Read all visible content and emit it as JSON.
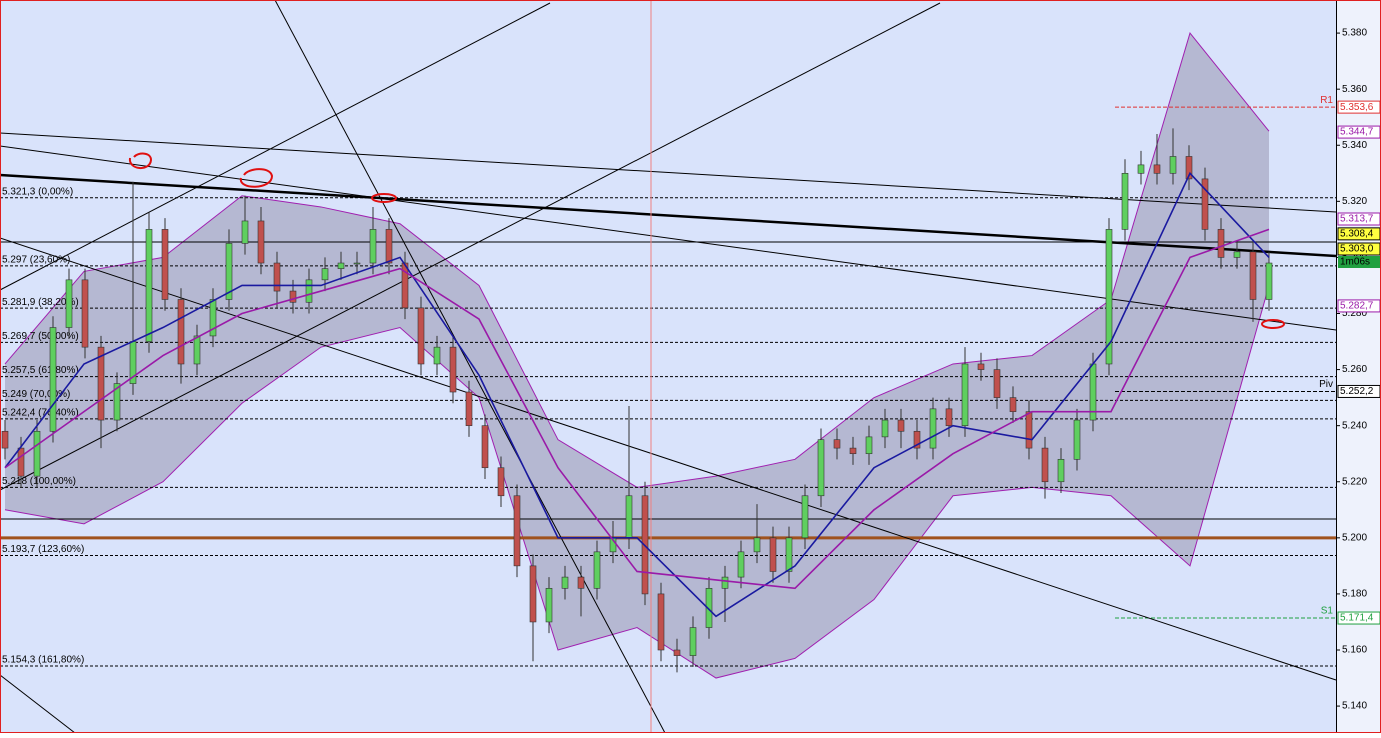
{
  "chart_data": {
    "type": "candlestick",
    "ylim": [
      5.1304,
      5.3918
    ],
    "yticks": [
      {
        "value": 5.14,
        "label": "5.140"
      },
      {
        "value": 5.16,
        "label": "5.160"
      },
      {
        "value": 5.18,
        "label": "5.180"
      },
      {
        "value": 5.2,
        "label": "5.200"
      },
      {
        "value": 5.22,
        "label": "5.220"
      },
      {
        "value": 5.24,
        "label": "5.240"
      },
      {
        "value": 5.26,
        "label": "5.260"
      },
      {
        "value": 5.28,
        "label": "5.280"
      },
      {
        "value": 5.3,
        "label": "5.300"
      },
      {
        "value": 5.32,
        "label": "5.320"
      },
      {
        "value": 5.34,
        "label": "5.340"
      },
      {
        "value": 5.36,
        "label": "5.360"
      },
      {
        "value": 5.38,
        "label": "5.380"
      }
    ],
    "up_color": "#5fcf5f",
    "down_color": "#c0504d",
    "open": [
      5.238,
      5.232,
      5.222,
      5.238,
      5.275,
      5.292,
      5.268,
      5.242,
      5.255,
      5.27,
      5.31,
      5.285,
      5.262,
      5.272,
      5.285,
      5.305,
      5.313,
      5.298,
      5.288,
      5.284,
      5.292,
      5.296,
      5.298,
      5.298,
      5.31,
      5.298,
      5.282,
      5.262,
      5.268,
      5.252,
      5.24,
      5.225,
      5.215,
      5.19,
      5.17,
      5.182,
      5.186,
      5.182,
      5.195,
      5.2,
      5.215,
      5.18,
      5.16,
      5.158,
      5.168,
      5.182,
      5.186,
      5.195,
      5.2,
      5.188,
      5.2,
      5.215,
      5.235,
      5.232,
      5.23,
      5.236,
      5.242,
      5.238,
      5.232,
      5.246,
      5.24,
      5.262,
      5.26,
      5.25,
      5.245,
      5.232,
      5.22,
      5.228,
      5.242,
      5.262,
      5.31,
      5.33,
      5.333,
      5.33,
      5.336,
      5.328,
      5.31,
      5.3,
      5.302,
      5.285
    ],
    "high": [
      5.242,
      5.236,
      5.242,
      5.279,
      5.296,
      5.296,
      5.272,
      5.259,
      5.327,
      5.316,
      5.314,
      5.289,
      5.276,
      5.289,
      5.31,
      5.322,
      5.318,
      5.302,
      5.292,
      5.296,
      5.3,
      5.302,
      5.302,
      5.318,
      5.314,
      5.302,
      5.286,
      5.272,
      5.272,
      5.256,
      5.244,
      5.229,
      5.219,
      5.194,
      5.186,
      5.19,
      5.19,
      5.199,
      5.206,
      5.247,
      5.22,
      5.184,
      5.164,
      5.172,
      5.186,
      5.19,
      5.199,
      5.212,
      5.204,
      5.204,
      5.219,
      5.239,
      5.239,
      5.236,
      5.24,
      5.246,
      5.246,
      5.242,
      5.25,
      5.25,
      5.268,
      5.266,
      5.264,
      5.254,
      5.249,
      5.236,
      5.232,
      5.246,
      5.266,
      5.314,
      5.335,
      5.338,
      5.344,
      5.346,
      5.34,
      5.332,
      5.314,
      5.306,
      5.306,
      5.302
    ],
    "low": [
      5.228,
      5.218,
      5.218,
      5.234,
      5.271,
      5.264,
      5.232,
      5.238,
      5.251,
      5.266,
      5.281,
      5.255,
      5.258,
      5.268,
      5.281,
      5.301,
      5.294,
      5.282,
      5.28,
      5.28,
      5.288,
      5.292,
      5.294,
      5.294,
      5.294,
      5.278,
      5.258,
      5.258,
      5.248,
      5.236,
      5.221,
      5.211,
      5.186,
      5.156,
      5.166,
      5.178,
      5.172,
      5.178,
      5.191,
      5.196,
      5.176,
      5.156,
      5.152,
      5.154,
      5.164,
      5.17,
      5.182,
      5.191,
      5.184,
      5.184,
      5.196,
      5.211,
      5.228,
      5.226,
      5.226,
      5.232,
      5.232,
      5.228,
      5.228,
      5.236,
      5.236,
      5.256,
      5.246,
      5.241,
      5.228,
      5.214,
      5.216,
      5.224,
      5.238,
      5.258,
      5.306,
      5.326,
      5.326,
      5.326,
      5.324,
      5.306,
      5.296,
      5.296,
      5.277,
      5.281
    ],
    "close": [
      5.232,
      5.222,
      5.238,
      5.275,
      5.292,
      5.268,
      5.242,
      5.255,
      5.27,
      5.31,
      5.285,
      5.262,
      5.272,
      5.285,
      5.305,
      5.313,
      5.298,
      5.288,
      5.284,
      5.292,
      5.296,
      5.298,
      5.298,
      5.31,
      5.298,
      5.282,
      5.262,
      5.268,
      5.252,
      5.24,
      5.225,
      5.215,
      5.19,
      5.17,
      5.182,
      5.186,
      5.182,
      5.195,
      5.2,
      5.215,
      5.18,
      5.16,
      5.158,
      5.168,
      5.182,
      5.186,
      5.195,
      5.2,
      5.188,
      5.2,
      5.215,
      5.235,
      5.232,
      5.23,
      5.236,
      5.242,
      5.238,
      5.232,
      5.246,
      5.24,
      5.262,
      5.26,
      5.25,
      5.245,
      5.232,
      5.22,
      5.228,
      5.242,
      5.262,
      5.31,
      5.33,
      5.333,
      5.33,
      5.336,
      5.328,
      5.31,
      5.3,
      5.302,
      5.285,
      5.298
    ],
    "band": {
      "color": "#a8aac4",
      "upper": [
        5.262,
        5.295,
        5.3,
        5.322,
        5.318,
        5.312,
        5.29,
        5.235,
        5.218,
        5.222,
        5.228,
        5.25,
        5.262,
        5.265,
        5.285,
        5.38,
        5.345
      ],
      "lower": [
        5.21,
        5.205,
        5.22,
        5.248,
        5.268,
        5.275,
        5.25,
        5.16,
        5.168,
        5.15,
        5.157,
        5.178,
        5.215,
        5.218,
        5.215,
        5.19,
        5.29
      ]
    },
    "series": [
      {
        "color": "#1a1aa0",
        "values": [
          5.225,
          5.262,
          5.275,
          5.29,
          5.29,
          5.3,
          5.258,
          5.2,
          5.2,
          5.172,
          5.19,
          5.225,
          5.24,
          5.235,
          5.27,
          5.33,
          5.3
        ]
      },
      {
        "color": "#9a1aa8",
        "values": [
          5.225,
          5.245,
          5.265,
          5.28,
          5.288,
          5.296,
          5.278,
          5.225,
          5.188,
          5.185,
          5.182,
          5.21,
          5.23,
          5.245,
          5.245,
          5.3,
          5.31
        ]
      }
    ],
    "fib_levels": [
      {
        "value": 5.3213,
        "label": "5.321,3 (0,00%)"
      },
      {
        "value": 5.297,
        "label": "5.297 (23,60%)"
      },
      {
        "value": 5.2819,
        "label": "5.281,9 (38,20%)"
      },
      {
        "value": 5.2697,
        "label": "5.269,7 (50,00%)"
      },
      {
        "value": 5.2575,
        "label": "5.257,5 (61,80%)"
      },
      {
        "value": 5.249,
        "label": "5.249 (70,00%)"
      },
      {
        "value": 5.2424,
        "label": "5.242,4 (76,40%)"
      },
      {
        "value": 5.218,
        "label": "5.218 (100,00%)"
      },
      {
        "value": 5.1937,
        "label": "5.193,7 (123,60%)"
      },
      {
        "value": 5.1543,
        "label": "5.154,3 (161,80%)"
      }
    ],
    "support_lines": [
      5.2067,
      5.3055
    ],
    "key_level": {
      "value": 5.2,
      "color": "#a0521d"
    },
    "pivots": [
      {
        "name": "R1",
        "value": 5.3536,
        "label": "5.353,6",
        "color": "#e03030"
      },
      {
        "name": "Piv",
        "value": 5.2522,
        "label": "5.252,2",
        "color": "#000000"
      },
      {
        "name": "S1",
        "value": 5.1714,
        "label": "5.171,4",
        "color": "#20a040"
      }
    ],
    "price_markers": [
      {
        "value": 5.3447,
        "label": "5.344,7",
        "color": "#9a1aa8",
        "bg": "#ffffff"
      },
      {
        "value": 5.3137,
        "label": "5.313,7",
        "color": "#9a1aa8",
        "bg": "#ffffff"
      },
      {
        "value": 5.3084,
        "label": "5.308,4",
        "color": "#000000",
        "bg": "#ffff40"
      },
      {
        "value": 5.303,
        "label": "5.303,0",
        "color": "#000000",
        "bg": "#ffff40"
      },
      {
        "value": 5.2827,
        "label": "5.282,7",
        "color": "#9a1aa8",
        "bg": "#ffffff"
      }
    ],
    "timer": {
      "label": "1m06s",
      "color": "#20a040"
    }
  }
}
